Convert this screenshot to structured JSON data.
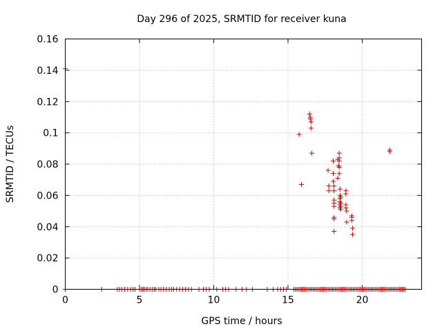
{
  "chart_data": {
    "type": "scatter",
    "title": "Day 296 of 2025, SRMTID for receiver kuna",
    "xlabel": "GPS time / hours",
    "ylabel": "SRMTID / TECUs",
    "xlim": [
      0,
      24
    ],
    "ylim": [
      0,
      0.16
    ],
    "xticks": [
      0,
      5,
      10,
      15,
      20
    ],
    "xtick_labels": [
      "0",
      "5",
      "10",
      "15",
      "20"
    ],
    "yticks": [
      0,
      0.02,
      0.04,
      0.06,
      0.08,
      0.1,
      0.12,
      0.14,
      0.16
    ],
    "ytick_labels": [
      "0",
      "0.02",
      "0.04",
      "0.06",
      "0.08",
      "0.1",
      "0.12",
      "0.14",
      "0.16"
    ],
    "grid": true,
    "marker": "+",
    "color": "#cc0000",
    "series": [
      {
        "name": "SRMTID",
        "points": [
          [
            0.0,
            0.141
          ],
          [
            15.75,
            0.099
          ],
          [
            15.9,
            0.067
          ],
          [
            16.45,
            0.112
          ],
          [
            16.5,
            0.109
          ],
          [
            16.5,
            0.11
          ],
          [
            16.55,
            0.107
          ],
          [
            16.55,
            0.103
          ],
          [
            16.6,
            0.087
          ],
          [
            17.7,
            0.076
          ],
          [
            17.75,
            0.066
          ],
          [
            17.75,
            0.063
          ],
          [
            18.05,
            0.082
          ],
          [
            18.05,
            0.074
          ],
          [
            18.05,
            0.069
          ],
          [
            18.1,
            0.066
          ],
          [
            18.1,
            0.063
          ],
          [
            18.1,
            0.057
          ],
          [
            18.1,
            0.055
          ],
          [
            18.1,
            0.053
          ],
          [
            18.1,
            0.046
          ],
          [
            18.1,
            0.045
          ],
          [
            18.1,
            0.037
          ],
          [
            18.35,
            0.083
          ],
          [
            18.35,
            0.071
          ],
          [
            18.4,
            0.079
          ],
          [
            18.45,
            0.087
          ],
          [
            18.45,
            0.084
          ],
          [
            18.45,
            0.082
          ],
          [
            18.45,
            0.078
          ],
          [
            18.45,
            0.074
          ],
          [
            18.5,
            0.064
          ],
          [
            18.5,
            0.06
          ],
          [
            18.5,
            0.058
          ],
          [
            18.5,
            0.056
          ],
          [
            18.5,
            0.054
          ],
          [
            18.5,
            0.052
          ],
          [
            18.55,
            0.059
          ],
          [
            18.55,
            0.055
          ],
          [
            18.55,
            0.053
          ],
          [
            18.55,
            0.051
          ],
          [
            18.9,
            0.063
          ],
          [
            18.9,
            0.061
          ],
          [
            18.9,
            0.054
          ],
          [
            18.9,
            0.052
          ],
          [
            18.95,
            0.05
          ],
          [
            18.95,
            0.043
          ],
          [
            19.3,
            0.047
          ],
          [
            19.3,
            0.046
          ],
          [
            19.3,
            0.044
          ],
          [
            19.35,
            0.039
          ],
          [
            19.35,
            0.035
          ],
          [
            21.85,
            0.089
          ],
          [
            21.85,
            0.088
          ]
        ],
        "zero_points_x": [
          0.0,
          2.45,
          3.5,
          3.65,
          3.8,
          4.0,
          4.2,
          4.4,
          4.55,
          4.7,
          5.0,
          5.1,
          5.2,
          5.3,
          5.45,
          5.55,
          5.7,
          5.85,
          6.0,
          6.1,
          6.3,
          6.45,
          6.6,
          6.8,
          7.0,
          7.15,
          7.3,
          7.5,
          7.7,
          7.9,
          8.1,
          8.3,
          8.5,
          9.0,
          9.3,
          9.5,
          9.7,
          10.2,
          10.6,
          10.8,
          11.0,
          11.5,
          11.9,
          12.2,
          12.6,
          13.6,
          14.0,
          14.3,
          14.5,
          14.7,
          14.9,
          15.4,
          15.5,
          15.6,
          15.7,
          15.8,
          15.9,
          16.0,
          16.1,
          16.2,
          16.3,
          16.4,
          16.5,
          16.6,
          16.7,
          16.8,
          16.9,
          17.0,
          17.1,
          17.2,
          17.3,
          17.4,
          17.5,
          17.6,
          17.7,
          17.8,
          17.9,
          18.0,
          18.1,
          18.2,
          18.3,
          18.4,
          18.5,
          18.6,
          18.7,
          18.8,
          18.9,
          19.0,
          19.1,
          19.2,
          19.3,
          19.4,
          19.5,
          19.6,
          19.7,
          19.8,
          19.9,
          20.0,
          20.1,
          20.2,
          20.3,
          20.4,
          20.5,
          20.6,
          20.7,
          20.8,
          20.9,
          21.0,
          21.1,
          21.2,
          21.3,
          21.4,
          21.5,
          21.6,
          21.7,
          21.8,
          21.9,
          22.0,
          22.1,
          22.2,
          22.3,
          22.4,
          22.5,
          22.6,
          22.7,
          22.8,
          22.9
        ]
      }
    ]
  }
}
